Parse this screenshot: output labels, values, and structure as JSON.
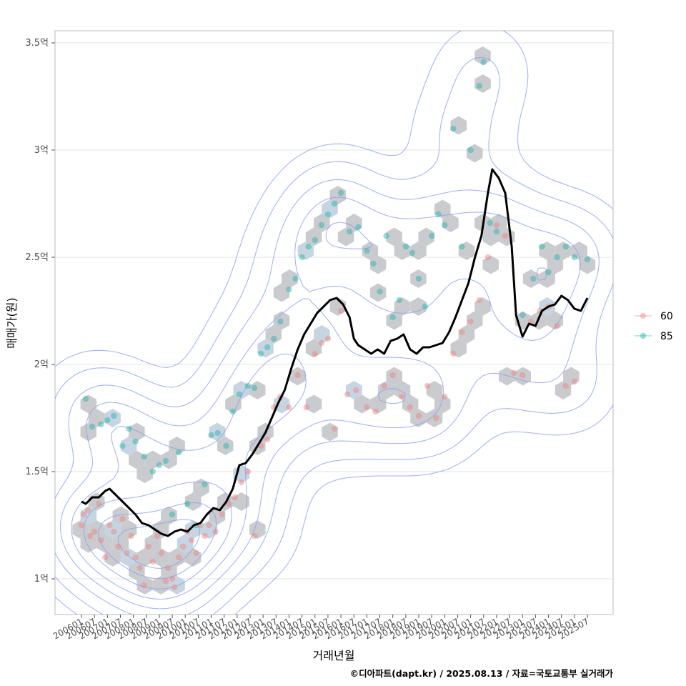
{
  "chart_data": {
    "type": "scatter",
    "title": "",
    "xlabel": "거래년월",
    "ylabel": "매매가(원)",
    "caption": "©디아파트(dapt.kr) / 2025.08.13 / 자료=국토교통부 실거래가",
    "ylim": [
      0.85,
      3.67
    ],
    "y_ticks": [
      1.0,
      1.5,
      2.0,
      2.5,
      3.0,
      3.5
    ],
    "y_tick_labels": [
      "1억",
      "1.5억",
      "2억",
      "2.5억",
      "3억",
      "3.5억"
    ],
    "x_start": "2006-01",
    "x_end": "2025-07",
    "x_tick_labels": [
      "200601",
      "200607",
      "200701",
      "200707",
      "200801",
      "200807",
      "200901",
      "200907",
      "201001",
      "201007",
      "201101",
      "201107",
      "201201",
      "201207",
      "201301",
      "201307",
      "201401",
      "201407",
      "201501",
      "201507",
      "201601",
      "201607",
      "201701",
      "201707",
      "201801",
      "201807",
      "201901",
      "201907",
      "202001",
      "202007",
      "202101",
      "202107",
      "202201",
      "202207",
      "202301",
      "202307",
      "202401",
      "202407",
      "202501",
      "202507"
    ],
    "grid": true,
    "legend_position": "right",
    "series": [
      {
        "name": "60",
        "color": "#f08080",
        "points": [
          [
            "2006-01",
            1.25
          ],
          [
            "2006-02",
            1.3
          ],
          [
            "2006-04",
            1.32
          ],
          [
            "2006-05",
            1.2
          ],
          [
            "2006-07",
            1.22
          ],
          [
            "2006-09",
            1.35
          ],
          [
            "2006-10",
            1.18
          ],
          [
            "2006-12",
            1.1
          ],
          [
            "2007-02",
            1.25
          ],
          [
            "2007-04",
            1.22
          ],
          [
            "2007-06",
            1.15
          ],
          [
            "2007-08",
            1.28
          ],
          [
            "2007-10",
            1.12
          ],
          [
            "2007-12",
            1.2
          ],
          [
            "2008-02",
            1.1
          ],
          [
            "2008-04",
            1.05
          ],
          [
            "2008-06",
            0.97
          ],
          [
            "2008-08",
            1.15
          ],
          [
            "2008-10",
            1.08
          ],
          [
            "2008-12",
            1.2
          ],
          [
            "2009-02",
            1.12
          ],
          [
            "2009-04",
            0.99
          ],
          [
            "2009-05",
            1.05
          ],
          [
            "2009-07",
            1.0
          ],
          [
            "2009-08",
            0.96
          ],
          [
            "2009-10",
            1.1
          ],
          [
            "2009-12",
            1.15
          ],
          [
            "2010-02",
            1.22
          ],
          [
            "2010-04",
            1.18
          ],
          [
            "2010-06",
            1.12
          ],
          [
            "2010-08",
            1.25
          ],
          [
            "2010-10",
            1.2
          ],
          [
            "2010-12",
            1.25
          ],
          [
            "2011-03",
            1.22
          ],
          [
            "2011-06",
            1.3
          ],
          [
            "2011-09",
            1.35
          ],
          [
            "2011-12",
            1.38
          ],
          [
            "2012-03",
            1.45
          ],
          [
            "2012-06",
            1.5
          ],
          [
            "2012-09",
            1.2
          ],
          [
            "2012-12",
            1.62
          ],
          [
            "2013-03",
            1.65
          ],
          [
            "2013-06",
            1.8
          ],
          [
            "2013-09",
            1.85
          ],
          [
            "2014-01",
            1.8
          ],
          [
            "2014-05",
            1.95
          ],
          [
            "2014-09",
            1.8
          ],
          [
            "2015-01",
            2.05
          ],
          [
            "2015-04",
            2.1
          ],
          [
            "2015-07",
            2.12
          ],
          [
            "2015-10",
            1.7
          ],
          [
            "2016-01",
            2.25
          ],
          [
            "2016-04",
            1.86
          ],
          [
            "2016-08",
            1.88
          ],
          [
            "2017-01",
            1.8
          ],
          [
            "2017-05",
            1.78
          ],
          [
            "2017-09",
            1.9
          ],
          [
            "2018-01",
            1.95
          ],
          [
            "2018-05",
            1.85
          ],
          [
            "2018-09",
            1.8
          ],
          [
            "2019-01",
            1.76
          ],
          [
            "2019-05",
            1.9
          ],
          [
            "2019-09",
            1.75
          ],
          [
            "2020-01",
            1.85
          ],
          [
            "2020-05",
            2.05
          ],
          [
            "2020-09",
            2.15
          ],
          [
            "2021-01",
            2.2
          ],
          [
            "2021-05",
            2.3
          ],
          [
            "2021-09",
            2.5
          ],
          [
            "2022-01",
            2.65
          ],
          [
            "2022-05",
            2.6
          ],
          [
            "2022-09",
            1.96
          ],
          [
            "2023-01",
            1.95
          ],
          [
            "2023-05",
            2.2
          ],
          [
            "2023-09",
            2.25
          ],
          [
            "2024-01",
            2.27
          ],
          [
            "2024-05",
            2.18
          ],
          [
            "2024-09",
            1.9
          ],
          [
            "2025-01",
            1.92
          ]
        ]
      },
      {
        "name": "85",
        "color": "#20b2aa",
        "points": [
          [
            "2006-03",
            1.84
          ],
          [
            "2006-06",
            1.71
          ],
          [
            "2006-10",
            1.72
          ],
          [
            "2007-01",
            1.74
          ],
          [
            "2007-04",
            1.76
          ],
          [
            "2007-08",
            1.62
          ],
          [
            "2007-11",
            1.7
          ],
          [
            "2008-02",
            1.64
          ],
          [
            "2008-06",
            1.57
          ],
          [
            "2008-10",
            1.5
          ],
          [
            "2009-01",
            1.53
          ],
          [
            "2009-04",
            1.55
          ],
          [
            "2009-07",
            1.3
          ],
          [
            "2009-10",
            1.59
          ],
          [
            "2010-02",
            1.35
          ],
          [
            "2010-06",
            1.25
          ],
          [
            "2010-10",
            1.44
          ],
          [
            "2011-01",
            1.67
          ],
          [
            "2011-04",
            1.68
          ],
          [
            "2011-08",
            1.62
          ],
          [
            "2011-11",
            1.78
          ],
          [
            "2012-02",
            1.86
          ],
          [
            "2012-06",
            1.9
          ],
          [
            "2012-09",
            1.89
          ],
          [
            "2012-12",
            2.05
          ],
          [
            "2013-03",
            2.08
          ],
          [
            "2013-06",
            2.12
          ],
          [
            "2013-09",
            2.2
          ],
          [
            "2014-01",
            2.35
          ],
          [
            "2014-04",
            2.4
          ],
          [
            "2014-07",
            2.5
          ],
          [
            "2014-10",
            2.55
          ],
          [
            "2015-01",
            2.58
          ],
          [
            "2015-04",
            2.65
          ],
          [
            "2015-07",
            2.7
          ],
          [
            "2015-10",
            2.75
          ],
          [
            "2016-01",
            2.8
          ],
          [
            "2016-05",
            2.62
          ],
          [
            "2016-09",
            2.64
          ],
          [
            "2017-01",
            2.53
          ],
          [
            "2017-04",
            2.47
          ],
          [
            "2017-07",
            2.34
          ],
          [
            "2017-10",
            2.6
          ],
          [
            "2018-01",
            2.22
          ],
          [
            "2018-04",
            2.3
          ],
          [
            "2018-07",
            2.55
          ],
          [
            "2018-10",
            2.52
          ],
          [
            "2019-01",
            2.4
          ],
          [
            "2019-04",
            2.27
          ],
          [
            "2019-07",
            2.6
          ],
          [
            "2019-10",
            2.7
          ],
          [
            "2020-01",
            2.65
          ],
          [
            "2020-05",
            3.1
          ],
          [
            "2020-09",
            2.55
          ],
          [
            "2021-01",
            3.0
          ],
          [
            "2021-05",
            3.3
          ],
          [
            "2021-07",
            3.41
          ],
          [
            "2021-10",
            2.66
          ],
          [
            "2022-01",
            2.62
          ],
          [
            "2023-01",
            2.23
          ],
          [
            "2023-06",
            2.4
          ],
          [
            "2023-10",
            2.55
          ],
          [
            "2024-01",
            2.43
          ],
          [
            "2024-05",
            2.5
          ],
          [
            "2024-09",
            2.55
          ],
          [
            "2025-01",
            2.5
          ],
          [
            "2025-07",
            2.49
          ]
        ]
      }
    ],
    "trend_line": {
      "color": "#000000",
      "points": [
        [
          "2006-01",
          1.36
        ],
        [
          "2006-03",
          1.35
        ],
        [
          "2006-06",
          1.38
        ],
        [
          "2006-09",
          1.38
        ],
        [
          "2006-12",
          1.41
        ],
        [
          "2007-02",
          1.42
        ],
        [
          "2007-05",
          1.39
        ],
        [
          "2007-08",
          1.36
        ],
        [
          "2007-11",
          1.33
        ],
        [
          "2008-02",
          1.3
        ],
        [
          "2008-05",
          1.26
        ],
        [
          "2008-08",
          1.25
        ],
        [
          "2008-11",
          1.23
        ],
        [
          "2009-02",
          1.21
        ],
        [
          "2009-05",
          1.2
        ],
        [
          "2009-08",
          1.22
        ],
        [
          "2009-11",
          1.23
        ],
        [
          "2010-02",
          1.22
        ],
        [
          "2010-05",
          1.25
        ],
        [
          "2010-08",
          1.26
        ],
        [
          "2010-11",
          1.3
        ],
        [
          "2011-02",
          1.33
        ],
        [
          "2011-05",
          1.32
        ],
        [
          "2011-08",
          1.36
        ],
        [
          "2011-11",
          1.42
        ],
        [
          "2012-02",
          1.53
        ],
        [
          "2012-05",
          1.54
        ],
        [
          "2012-08",
          1.58
        ],
        [
          "2012-11",
          1.63
        ],
        [
          "2013-02",
          1.68
        ],
        [
          "2013-05",
          1.75
        ],
        [
          "2013-08",
          1.82
        ],
        [
          "2013-11",
          1.88
        ],
        [
          "2014-02",
          1.98
        ],
        [
          "2014-05",
          2.07
        ],
        [
          "2014-08",
          2.14
        ],
        [
          "2014-11",
          2.19
        ],
        [
          "2015-02",
          2.24
        ],
        [
          "2015-05",
          2.27
        ],
        [
          "2015-08",
          2.3
        ],
        [
          "2015-11",
          2.31
        ],
        [
          "2016-02",
          2.28
        ],
        [
          "2016-05",
          2.22
        ],
        [
          "2016-07",
          2.12
        ],
        [
          "2016-09",
          2.09
        ],
        [
          "2016-12",
          2.07
        ],
        [
          "2017-03",
          2.05
        ],
        [
          "2017-06",
          2.07
        ],
        [
          "2017-09",
          2.05
        ],
        [
          "2017-12",
          2.11
        ],
        [
          "2018-03",
          2.12
        ],
        [
          "2018-06",
          2.14
        ],
        [
          "2018-09",
          2.07
        ],
        [
          "2018-12",
          2.05
        ],
        [
          "2019-03",
          2.08
        ],
        [
          "2019-06",
          2.08
        ],
        [
          "2019-09",
          2.09
        ],
        [
          "2019-12",
          2.1
        ],
        [
          "2020-03",
          2.15
        ],
        [
          "2020-06",
          2.22
        ],
        [
          "2020-09",
          2.3
        ],
        [
          "2020-12",
          2.38
        ],
        [
          "2021-03",
          2.5
        ],
        [
          "2021-06",
          2.6
        ],
        [
          "2021-09",
          2.8
        ],
        [
          "2021-11",
          2.91
        ],
        [
          "2022-02",
          2.87
        ],
        [
          "2022-05",
          2.8
        ],
        [
          "2022-08",
          2.55
        ],
        [
          "2022-10",
          2.23
        ],
        [
          "2023-01",
          2.13
        ],
        [
          "2023-04",
          2.19
        ],
        [
          "2023-07",
          2.18
        ],
        [
          "2023-10",
          2.25
        ],
        [
          "2024-01",
          2.27
        ],
        [
          "2024-04",
          2.28
        ],
        [
          "2024-07",
          2.32
        ],
        [
          "2024-10",
          2.3
        ],
        [
          "2025-01",
          2.26
        ],
        [
          "2025-04",
          2.25
        ],
        [
          "2025-07",
          2.31
        ]
      ]
    },
    "legend": [
      {
        "label": "60",
        "color": "#f08080"
      },
      {
        "label": "85",
        "color": "#20b2aa"
      }
    ]
  }
}
